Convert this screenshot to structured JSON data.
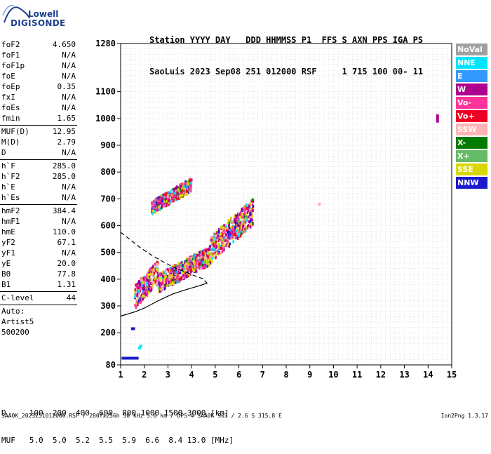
{
  "logo": {
    "top": "Lowell",
    "bottom": "DIGISONDE"
  },
  "header": {
    "labels": "Station YYYY DAY   DDD HHMMSS P1  FFS S AXN PPS IGA PS",
    "values": "SaoLuis 2023 Sep08 251 012000 RSF     1 715 100 00- 11"
  },
  "params": {
    "group1": [
      {
        "label": "foF2",
        "value": "4.650"
      },
      {
        "label": "foF1",
        "value": "N/A"
      },
      {
        "label": "foF1p",
        "value": "N/A"
      },
      {
        "label": "foE",
        "value": "N/A"
      },
      {
        "label": "foEp",
        "value": "0.35"
      },
      {
        "label": "fxI",
        "value": "N/A"
      },
      {
        "label": "foEs",
        "value": "N/A"
      },
      {
        "label": "fmin",
        "value": "1.65"
      }
    ],
    "group2": [
      {
        "label": "MUF(D)",
        "value": "12.95"
      },
      {
        "label": "M(D)",
        "value": "2.79"
      },
      {
        "label": "D",
        "value": "N/A"
      }
    ],
    "group3": [
      {
        "label": "h`F",
        "value": "285.0"
      },
      {
        "label": "h`F2",
        "value": "285.0"
      },
      {
        "label": "h`E",
        "value": "N/A"
      },
      {
        "label": "h`Es",
        "value": "N/A"
      }
    ],
    "group4": [
      {
        "label": "hmF2",
        "value": "384.4"
      },
      {
        "label": "hmF1",
        "value": "N/A"
      },
      {
        "label": "hmE",
        "value": "110.0"
      },
      {
        "label": "yF2",
        "value": "67.1"
      },
      {
        "label": "yF1",
        "value": "N/A"
      },
      {
        "label": "yE",
        "value": "20.0"
      },
      {
        "label": "B0",
        "value": "77.8"
      },
      {
        "label": "B1",
        "value": "1.31"
      }
    ],
    "group5": [
      {
        "label": "C-level",
        "value": "44"
      }
    ],
    "auto": [
      "Auto:",
      "Artist5",
      "500200"
    ]
  },
  "legend": [
    {
      "label": "NoVal",
      "color": "#a0a0a0"
    },
    {
      "label": "NNE",
      "color": "#00e5ff"
    },
    {
      "label": "E",
      "color": "#3399ff"
    },
    {
      "label": "W",
      "color": "#b0008f"
    },
    {
      "label": "Vo-",
      "color": "#ff3399"
    },
    {
      "label": "Vo+",
      "color": "#ee0022"
    },
    {
      "label": "SSW",
      "color": "#ffb3b3"
    },
    {
      "label": "X-",
      "color": "#007a00"
    },
    {
      "label": "X+",
      "color": "#66bb66"
    },
    {
      "label": "SSE",
      "color": "#d8d800"
    },
    {
      "label": "NNW",
      "color": "#1a1acc"
    }
  ],
  "bottom_table": {
    "d_row": "D     100  200  400  600  800 1000 1500 3000 [km]",
    "muf_row": "MUF   5.0  5.0  5.2  5.5  5.9  6.6  8.4 13.0 [MHz]"
  },
  "footer": {
    "left": "SAA0K_2023251012000.RSF / 280fx256h 50 kHz 5.0 km / DPS-4 SAA0K 903 / 2.6 S 315.8 E",
    "right": "Ion2Png 1.3.17"
  },
  "chart_data": {
    "type": "scatter",
    "title": "",
    "xlabel": "",
    "ylabel": "",
    "xlim": [
      1,
      15
    ],
    "ylim": [
      80,
      1280
    ],
    "x_ticks": [
      1,
      2,
      3,
      4,
      5,
      6,
      7,
      8,
      9,
      10,
      11,
      12,
      13,
      14,
      15
    ],
    "y_ticks": [
      80,
      200,
      300,
      400,
      500,
      600,
      700,
      800,
      900,
      1000,
      1100,
      1280
    ],
    "grid": true,
    "profile_solid": {
      "x": [
        1.0,
        1.6,
        2.0,
        2.6,
        3.2,
        3.8,
        4.3,
        4.65,
        4.55
      ],
      "y": [
        262,
        278,
        292,
        320,
        345,
        362,
        375,
        385,
        395
      ]
    },
    "profile_dashed": {
      "x": [
        1.0,
        1.4,
        1.8,
        2.3,
        2.8,
        3.3,
        3.8,
        4.2,
        4.6
      ],
      "y": [
        575,
        548,
        520,
        490,
        465,
        442,
        425,
        410,
        398
      ]
    },
    "echo_bands": [
      {
        "x0": 1.6,
        "x1": 2.6,
        "y0": 290,
        "y1": 380,
        "slope_y1": 460
      },
      {
        "x0": 2.6,
        "x1": 4.8,
        "y0": 350,
        "y1": 420,
        "slope_y1": 540
      },
      {
        "x0": 4.8,
        "x1": 6.6,
        "y0": 460,
        "y1": 560,
        "slope_y1": 720
      },
      {
        "x0": 2.3,
        "x1": 4.0,
        "y0": 640,
        "y1": 690,
        "slope_y1": 800
      }
    ],
    "isolated_points": [
      {
        "x": 1.5,
        "y": 215,
        "color": "#1a1acc"
      },
      {
        "x": 1.55,
        "y": 215,
        "color": "#1a1acc"
      },
      {
        "x": 1.8,
        "y": 143,
        "color": "#00e5ff"
      },
      {
        "x": 1.85,
        "y": 150,
        "color": "#00e5ff"
      },
      {
        "x": 1.1,
        "y": 105,
        "color": "#1a1acc"
      },
      {
        "x": 1.2,
        "y": 105,
        "color": "#1a1acc"
      },
      {
        "x": 1.3,
        "y": 105,
        "color": "#1a1acc"
      },
      {
        "x": 1.4,
        "y": 105,
        "color": "#1a1acc"
      },
      {
        "x": 1.5,
        "y": 105,
        "color": "#1a1acc"
      },
      {
        "x": 1.6,
        "y": 105,
        "color": "#1a1acc"
      },
      {
        "x": 1.7,
        "y": 105,
        "color": "#1a1acc"
      },
      {
        "x": 9.4,
        "y": 680,
        "color": "#ffb3b3"
      },
      {
        "x": 14.4,
        "y": 990,
        "color": "#b0008f"
      },
      {
        "x": 14.4,
        "y": 1000,
        "color": "#b0008f"
      },
      {
        "x": 14.4,
        "y": 1010,
        "color": "#b0008f"
      }
    ]
  }
}
